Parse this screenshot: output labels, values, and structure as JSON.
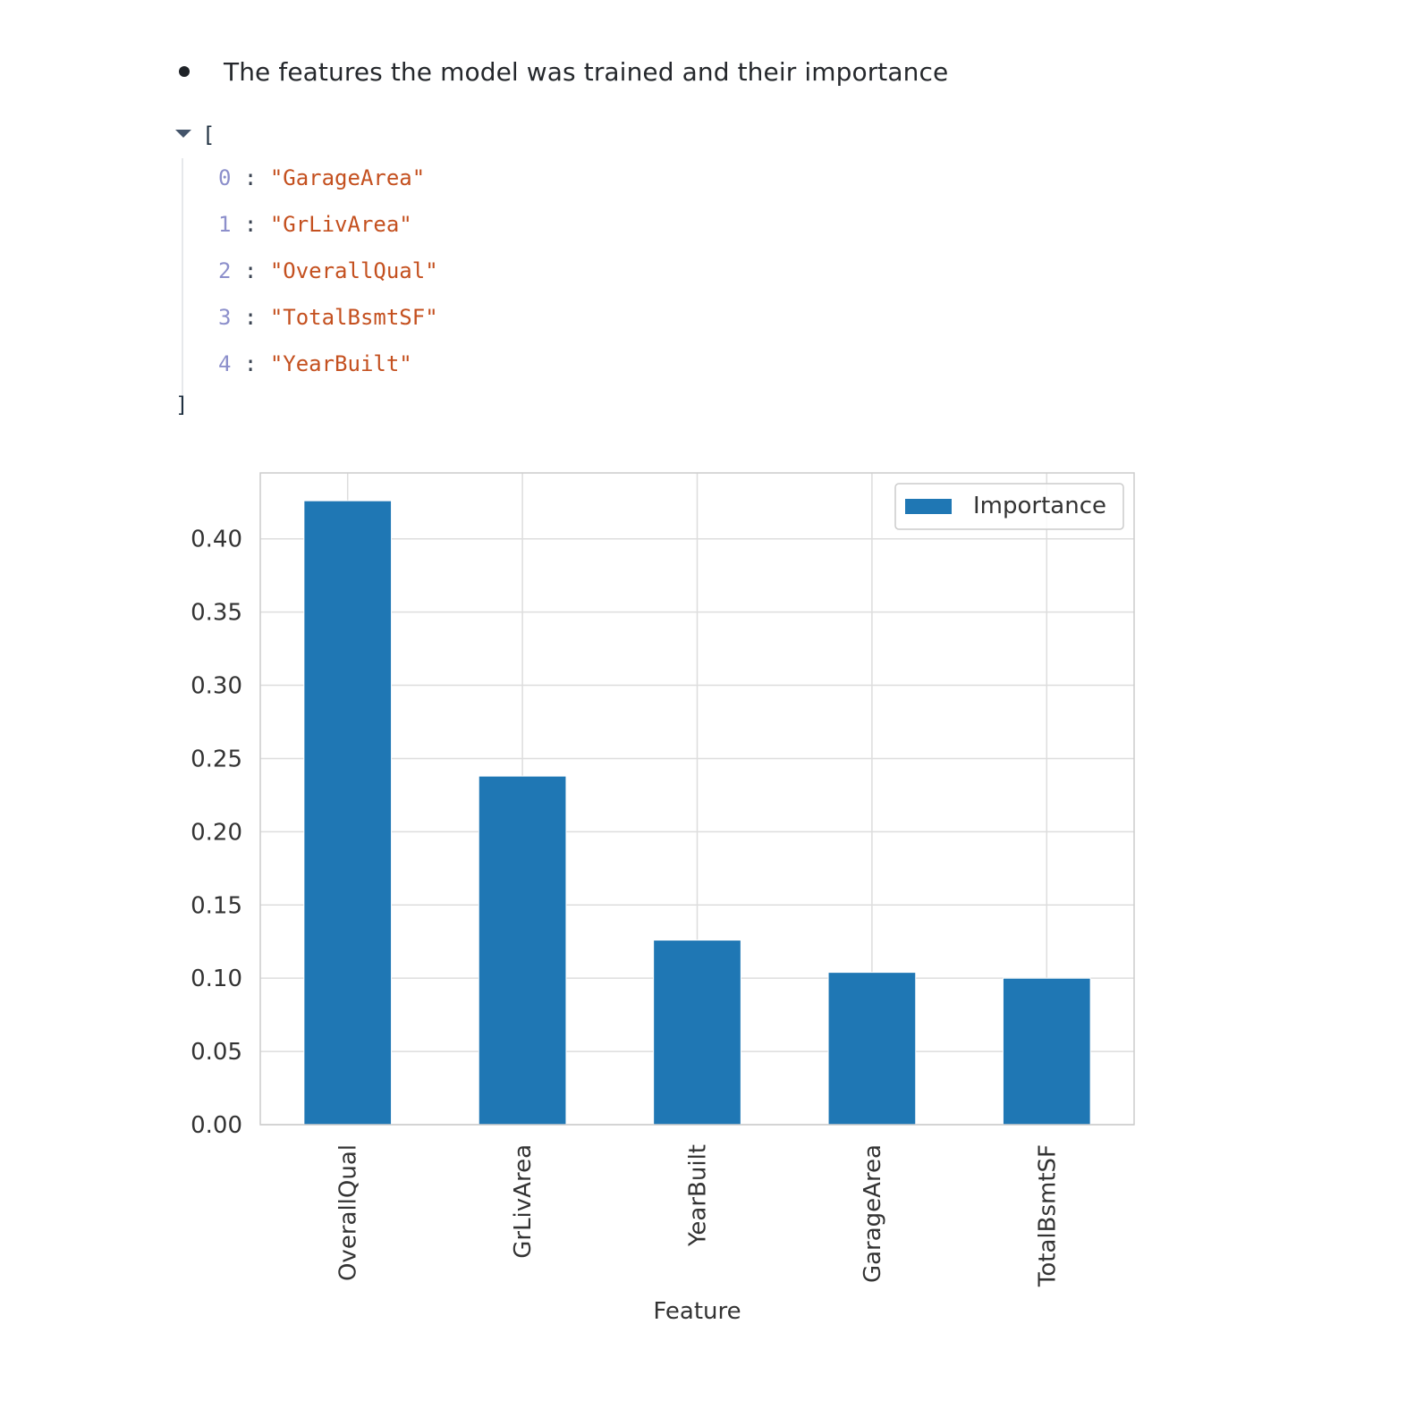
{
  "bullet": {
    "text": "The features the model was trained and their importance"
  },
  "json_view": {
    "open_bracket": "[",
    "close_bracket": "]",
    "items": [
      {
        "index": "0",
        "value": "\"GarageArea\""
      },
      {
        "index": "1",
        "value": "\"GrLivArea\""
      },
      {
        "index": "2",
        "value": "\"OverallQual\""
      },
      {
        "index": "3",
        "value": "\"TotalBsmtSF\""
      },
      {
        "index": "4",
        "value": "\"YearBuilt\""
      }
    ]
  },
  "chart_data": {
    "type": "bar",
    "categories": [
      "OverallQual",
      "GrLivArea",
      "YearBuilt",
      "GarageArea",
      "TotalBsmtSF"
    ],
    "series": [
      {
        "name": "Importance",
        "values": [
          0.426,
          0.238,
          0.126,
          0.104,
          0.1
        ],
        "color": "#1f77b4"
      }
    ],
    "xlabel": "Feature",
    "ylabel": "",
    "ylim": [
      0,
      0.445
    ],
    "yticks": [
      "0.00",
      "0.05",
      "0.10",
      "0.15",
      "0.20",
      "0.25",
      "0.30",
      "0.35",
      "0.40"
    ],
    "grid": true,
    "legend_position": "top-right"
  }
}
